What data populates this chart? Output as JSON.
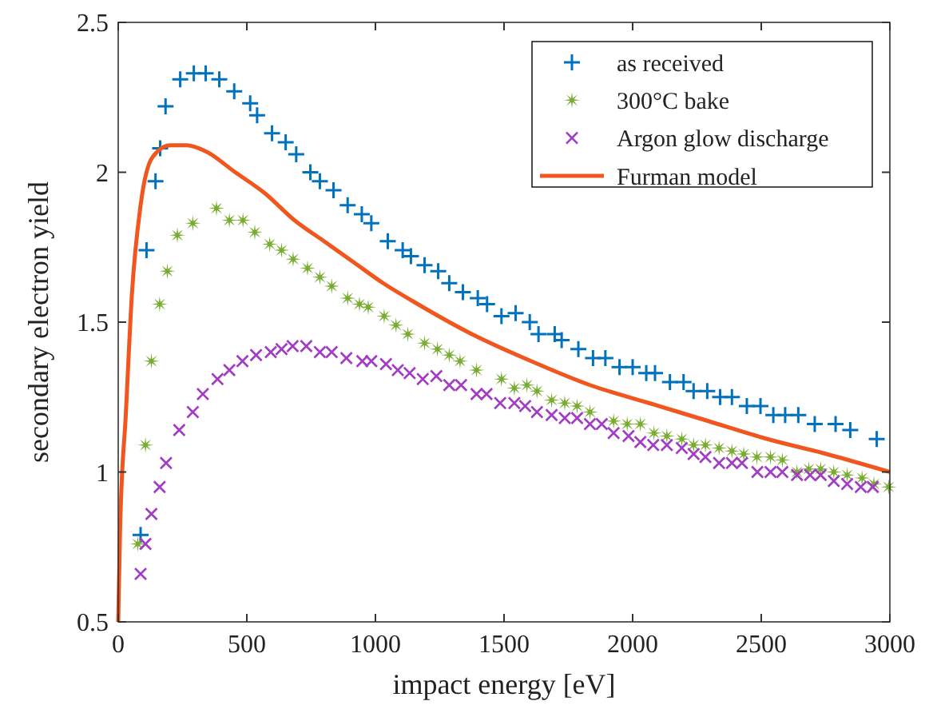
{
  "chart_data": {
    "type": "scatter",
    "xlabel": "impact energy [eV]",
    "ylabel": "secondary electron yield",
    "xlim": [
      0,
      3000
    ],
    "ylim": [
      0.5,
      2.5
    ],
    "xticks": [
      0,
      500,
      1000,
      1500,
      2000,
      2500,
      3000
    ],
    "yticks": [
      0.5,
      1,
      1.5,
      2,
      2.5
    ],
    "grid": false,
    "legend": "top right",
    "series": [
      {
        "name": "as received",
        "color": "#0072bd",
        "marker": "cross",
        "x": [
          87,
          110,
          145,
          163,
          184,
          241,
          294,
          340,
          393,
          451,
          513,
          540,
          598,
          651,
          692,
          747,
          784,
          837,
          892,
          947,
          984,
          1048,
          1106,
          1138,
          1191,
          1244,
          1287,
          1340,
          1398,
          1434,
          1490,
          1545,
          1600,
          1634,
          1697,
          1724,
          1789,
          1846,
          1894,
          1949,
          2000,
          2053,
          2087,
          2145,
          2198,
          2237,
          2290,
          2340,
          2386,
          2444,
          2497,
          2547,
          2593,
          2644,
          2708,
          2789,
          2846,
          2949
        ],
        "values": [
          0.79,
          1.74,
          1.97,
          2.08,
          2.22,
          2.31,
          2.33,
          2.33,
          2.31,
          2.27,
          2.23,
          2.19,
          2.13,
          2.1,
          2.06,
          2,
          1.97,
          1.94,
          1.89,
          1.86,
          1.83,
          1.77,
          1.74,
          1.72,
          1.69,
          1.67,
          1.63,
          1.6,
          1.58,
          1.56,
          1.52,
          1.53,
          1.5,
          1.46,
          1.46,
          1.44,
          1.41,
          1.38,
          1.38,
          1.35,
          1.35,
          1.33,
          1.33,
          1.3,
          1.3,
          1.27,
          1.27,
          1.25,
          1.25,
          1.22,
          1.22,
          1.19,
          1.19,
          1.19,
          1.16,
          1.16,
          1.14,
          1.11
        ]
      },
      {
        "name": "300°C bake",
        "color": "#77ac30",
        "marker": "star",
        "x": [
          76,
          106,
          129,
          161,
          191,
          230,
          290,
          382,
          432,
          485,
          531,
          589,
          635,
          680,
          736,
          784,
          830,
          892,
          938,
          972,
          1034,
          1080,
          1126,
          1191,
          1241,
          1287,
          1329,
          1393,
          1490,
          1540,
          1589,
          1628,
          1685,
          1736,
          1784,
          1834,
          1926,
          1979,
          2030,
          2083,
          2133,
          2191,
          2237,
          2283,
          2336,
          2386,
          2432,
          2483,
          2536,
          2582,
          2639,
          2685,
          2731,
          2782,
          2834,
          2892,
          2938,
          2995
        ],
        "values": [
          0.76,
          1.09,
          1.37,
          1.56,
          1.67,
          1.79,
          1.83,
          1.88,
          1.84,
          1.84,
          1.8,
          1.76,
          1.74,
          1.71,
          1.68,
          1.65,
          1.62,
          1.58,
          1.56,
          1.55,
          1.52,
          1.49,
          1.46,
          1.43,
          1.41,
          1.39,
          1.37,
          1.34,
          1.31,
          1.28,
          1.29,
          1.27,
          1.24,
          1.23,
          1.22,
          1.2,
          1.17,
          1.16,
          1.16,
          1.13,
          1.12,
          1.11,
          1.09,
          1.09,
          1.08,
          1.07,
          1.06,
          1.05,
          1.05,
          1.04,
          1,
          1.01,
          1.01,
          1,
          0.99,
          0.98,
          0.96,
          0.95
        ]
      },
      {
        "name": "Argon glow discharge",
        "color": "#a23cc4",
        "marker": "x",
        "x": [
          87,
          106,
          129,
          161,
          186,
          237,
          290,
          329,
          386,
          432,
          483,
          536,
          593,
          635,
          678,
          731,
          784,
          830,
          887,
          949,
          984,
          1041,
          1087,
          1133,
          1184,
          1237,
          1287,
          1333,
          1393,
          1432,
          1485,
          1540,
          1582,
          1628,
          1685,
          1736,
          1784,
          1834,
          1880,
          1926,
          1984,
          2030,
          2080,
          2133,
          2191,
          2237,
          2283,
          2336,
          2386,
          2425,
          2485,
          2536,
          2582,
          2639,
          2690,
          2731,
          2782,
          2834,
          2887,
          2934
        ],
        "values": [
          0.66,
          0.76,
          0.86,
          0.95,
          1.03,
          1.14,
          1.2,
          1.26,
          1.31,
          1.34,
          1.37,
          1.39,
          1.4,
          1.41,
          1.42,
          1.42,
          1.4,
          1.4,
          1.38,
          1.37,
          1.37,
          1.36,
          1.34,
          1.33,
          1.31,
          1.32,
          1.29,
          1.29,
          1.26,
          1.26,
          1.23,
          1.23,
          1.22,
          1.2,
          1.19,
          1.18,
          1.18,
          1.16,
          1.16,
          1.13,
          1.12,
          1.1,
          1.09,
          1.09,
          1.08,
          1.06,
          1.05,
          1.03,
          1.03,
          1.03,
          1,
          1,
          1,
          0.99,
          0.99,
          0.99,
          0.97,
          0.96,
          0.95,
          0.95
        ]
      },
      {
        "name": "Furman model",
        "type": "line",
        "color": "#f0561d",
        "marker": "none",
        "line_style": "solid",
        "x": [
          0,
          7,
          30,
          53,
          87,
          133,
          202,
          267,
          340,
          455,
          570,
          685,
          800,
          915,
          1030,
          1145,
          1375,
          1605,
          1834,
          2064,
          2294,
          2524,
          2754,
          3000
        ],
        "values": [
          0.5,
          0.8,
          1.2,
          1.59,
          1.89,
          2.05,
          2.09,
          2.09,
          2.07,
          2,
          1.93,
          1.84,
          1.77,
          1.7,
          1.63,
          1.57,
          1.46,
          1.37,
          1.29,
          1.23,
          1.17,
          1.11,
          1.06,
          1
        ]
      }
    ]
  }
}
